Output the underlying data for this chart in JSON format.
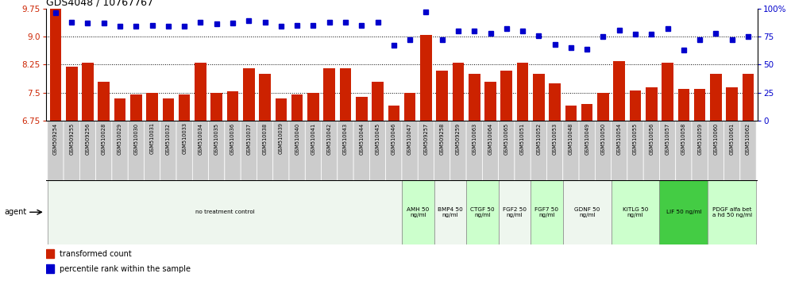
{
  "title": "GDS4048 / 10767767",
  "categories": [
    "GSM509254",
    "GSM509255",
    "GSM509256",
    "GSM510028",
    "GSM510029",
    "GSM510030",
    "GSM510031",
    "GSM510032",
    "GSM510033",
    "GSM510034",
    "GSM510035",
    "GSM510036",
    "GSM510037",
    "GSM510038",
    "GSM510039",
    "GSM510040",
    "GSM510041",
    "GSM510042",
    "GSM510043",
    "GSM510044",
    "GSM510045",
    "GSM510046",
    "GSM510047",
    "GSM509257",
    "GSM509258",
    "GSM509259",
    "GSM510063",
    "GSM510064",
    "GSM510065",
    "GSM510051",
    "GSM510052",
    "GSM510053",
    "GSM510048",
    "GSM510049",
    "GSM510050",
    "GSM510054",
    "GSM510055",
    "GSM510056",
    "GSM510057",
    "GSM510058",
    "GSM510059",
    "GSM510060",
    "GSM510061",
    "GSM510062"
  ],
  "bar_values": [
    9.75,
    8.2,
    8.3,
    7.8,
    7.35,
    7.45,
    7.5,
    7.35,
    7.45,
    8.3,
    7.5,
    7.53,
    8.15,
    8.0,
    7.35,
    7.45,
    7.5,
    8.15,
    8.15,
    7.38,
    7.8,
    7.15,
    7.5,
    9.05,
    8.1,
    8.3,
    8.0,
    7.8,
    8.1,
    8.3,
    8.0,
    7.75,
    7.15,
    7.2,
    7.5,
    8.35,
    7.55,
    7.65,
    8.3,
    7.6,
    7.6,
    8.0,
    7.65,
    8.0
  ],
  "percentile_values": [
    96,
    88,
    87,
    87,
    84,
    84,
    85,
    84,
    84,
    88,
    86,
    87,
    89,
    88,
    84,
    85,
    85,
    88,
    88,
    85,
    88,
    67,
    72,
    97,
    72,
    80,
    80,
    78,
    82,
    80,
    76,
    68,
    65,
    64,
    75,
    81,
    77,
    77,
    82,
    63,
    72,
    78,
    72,
    75
  ],
  "ylim_left": [
    6.75,
    9.75
  ],
  "ylim_right": [
    0,
    100
  ],
  "yticks_left": [
    6.75,
    7.5,
    8.25,
    9.0,
    9.75
  ],
  "yticks_right": [
    0,
    25,
    50,
    75,
    100
  ],
  "bar_color": "#cc2200",
  "dot_color": "#0000cc",
  "agent_groups": [
    {
      "label": "no treatment control",
      "start": 0,
      "end": 22,
      "color": "#eef6ee"
    },
    {
      "label": "AMH 50\nng/ml",
      "start": 22,
      "end": 24,
      "color": "#ccffcc"
    },
    {
      "label": "BMP4 50\nng/ml",
      "start": 24,
      "end": 26,
      "color": "#eef6ee"
    },
    {
      "label": "CTGF 50\nng/ml",
      "start": 26,
      "end": 28,
      "color": "#ccffcc"
    },
    {
      "label": "FGF2 50\nng/ml",
      "start": 28,
      "end": 30,
      "color": "#eef6ee"
    },
    {
      "label": "FGF7 50\nng/ml",
      "start": 30,
      "end": 32,
      "color": "#ccffcc"
    },
    {
      "label": "GDNF 50\nng/ml",
      "start": 32,
      "end": 35,
      "color": "#eef6ee"
    },
    {
      "label": "KITLG 50\nng/ml",
      "start": 35,
      "end": 38,
      "color": "#ccffcc"
    },
    {
      "label": "LIF 50 ng/ml",
      "start": 38,
      "end": 41,
      "color": "#44cc44"
    },
    {
      "label": "PDGF alfa bet\na hd 50 ng/ml",
      "start": 41,
      "end": 44,
      "color": "#ccffcc"
    }
  ],
  "xtick_bg": "#cccccc",
  "legend_bar_label": "transformed count",
  "legend_dot_label": "percentile rank within the sample",
  "agent_label": "agent"
}
